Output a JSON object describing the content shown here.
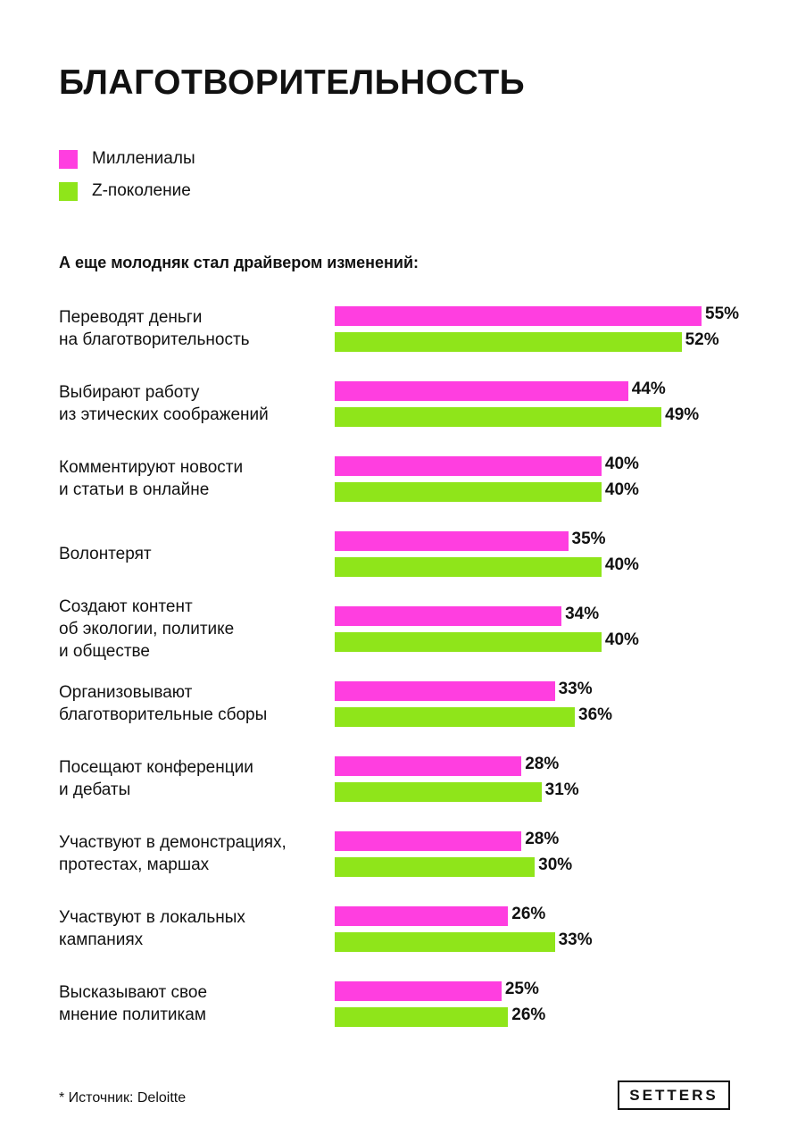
{
  "title": "БЛАГОТВОРИТЕЛЬНОСТЬ",
  "subtitle": "А еще молодняк стал драйвером изменений:",
  "source": "* Источник: Deloitte",
  "logo": "SETTERS",
  "colors": {
    "millennials": "#ff3ee0",
    "genz": "#8fe51a"
  },
  "chart_data": {
    "type": "bar",
    "orientation": "horizontal",
    "unit": "%",
    "grid": false,
    "legend_placement": "top-left",
    "categories": [
      "Переводят деньги\nна благотворительность",
      "Выбирают работу\nиз этических соображений",
      "Комментируют новости\nи статьи в онлайне",
      "Волонтерят",
      "Создают контент\nоб экологии, политике\nи обществе",
      "Организовывают\nблаготворительные сборы",
      "Посещают конференции\nи дебаты",
      "Участвуют в демонстрациях,\nпротестах, маршах",
      "Участвуют в локальных\nкампаниях",
      "Высказывают свое\nмнение политикам"
    ],
    "series": [
      {
        "name": "Миллениалы",
        "values": [
          55,
          44,
          40,
          35,
          34,
          33,
          28,
          28,
          26,
          25
        ]
      },
      {
        "name": "Z-поколение",
        "values": [
          52,
          49,
          40,
          40,
          40,
          36,
          31,
          30,
          33,
          26
        ]
      }
    ]
  }
}
